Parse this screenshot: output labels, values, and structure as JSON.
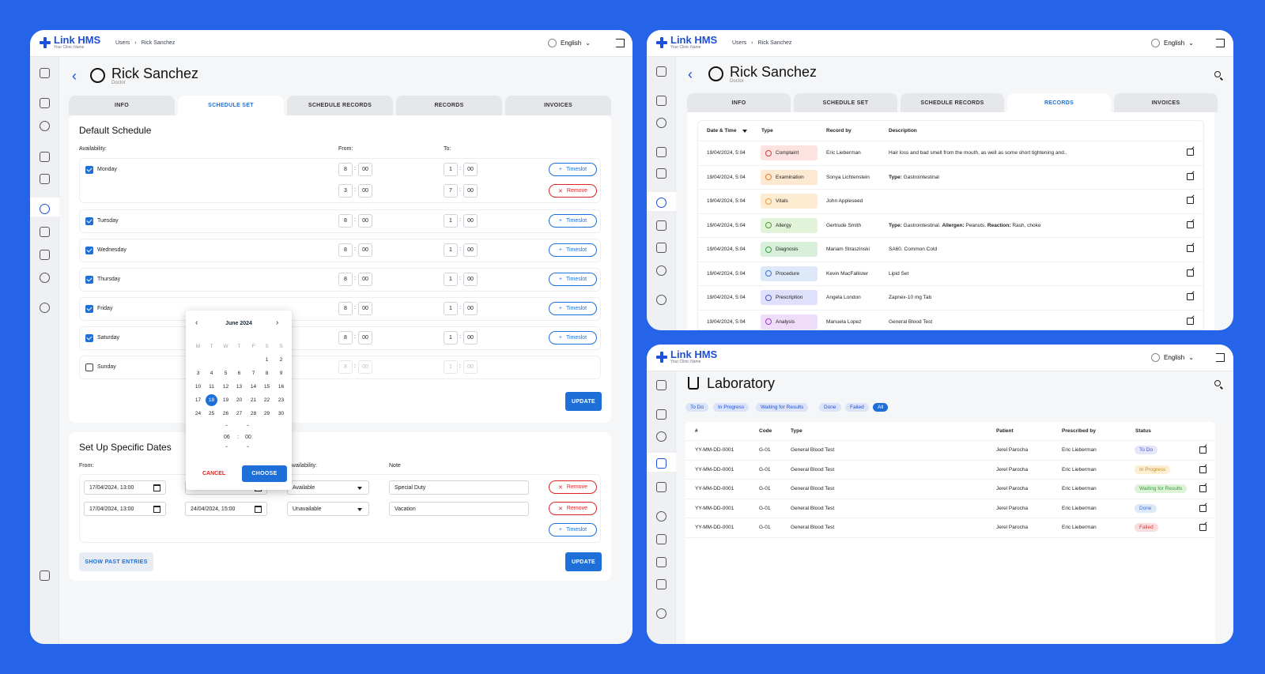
{
  "brand": {
    "name": "Link HMS",
    "sub": "Your Clinic Name"
  },
  "lang": "English",
  "w1": {
    "crumbs": [
      "Users",
      "›",
      "Rick Sanchez"
    ],
    "user": {
      "name": "Rick Sanchez",
      "role": "Doctor"
    },
    "tabs": [
      "INFO",
      "SCHEDULE SET",
      "SCHEDULE RECORDS",
      "RECORDS",
      "INVOICES"
    ],
    "def_title": "Default Schedule",
    "availability": "Availability:",
    "from": "From:",
    "to": "To:",
    "days": [
      {
        "name": "Monday",
        "from_h": "8",
        "from_m": "00",
        "to_h": "1",
        "to_m": "00",
        "checked": true
      },
      {
        "name": "Tuesday",
        "from_h": "8",
        "from_m": "00",
        "to_h": "1",
        "to_m": "00",
        "checked": true
      },
      {
        "name": "Wednesday",
        "from_h": "8",
        "from_m": "00",
        "to_h": "1",
        "to_m": "00",
        "checked": true
      },
      {
        "name": "Thursday",
        "from_h": "8",
        "from_m": "00",
        "to_h": "1",
        "to_m": "00",
        "checked": true
      },
      {
        "name": "Friday",
        "from_h": "8",
        "from_m": "00",
        "to_h": "1",
        "to_m": "00",
        "checked": true
      },
      {
        "name": "Saturday",
        "from_h": "8",
        "from_m": "00",
        "to_h": "1",
        "to_m": "00",
        "checked": true
      },
      {
        "name": "Sunday",
        "from_h": "8",
        "from_m": "00",
        "to_h": "1",
        "to_m": "00",
        "checked": false
      }
    ],
    "monday_extra": {
      "from_h": "3",
      "from_m": "00",
      "to_h": "7",
      "to_m": "00"
    },
    "timeslot": "Timeslot",
    "remove": "Remove",
    "colon": ":",
    "update": "UPDATE",
    "spec_title": "Set Up Specific Dates",
    "spec_from": "From:",
    "spec_avail": "Availability:",
    "spec_note": "Note",
    "spec_rows": [
      {
        "from": "17/04/2024, 13:00",
        "to": "",
        "avail": "Available",
        "note": "Special Duty"
      },
      {
        "from": "17/04/2024, 13:00",
        "to": "24/04/2024, 15:00",
        "avail": "Unavailable",
        "note": "Vacation"
      }
    ],
    "past": "SHOW PAST ENTRIES",
    "cal": {
      "month": "June 2024",
      "dows": [
        "M",
        "T",
        "W",
        "T",
        "F",
        "S",
        "S"
      ],
      "weeks": [
        [
          "",
          "",
          "",
          "",
          "",
          "1",
          "2"
        ],
        [
          "3",
          "4",
          "5",
          "6",
          "7",
          "8",
          "9"
        ],
        [
          "10",
          "11",
          "12",
          "13",
          "14",
          "15",
          "16"
        ],
        [
          "17",
          "18",
          "19",
          "20",
          "21",
          "22",
          "23"
        ],
        [
          "24",
          "25",
          "26",
          "27",
          "28",
          "29",
          "30"
        ]
      ],
      "selected": "18",
      "hour": "06",
      "min": "00",
      "cancel": "CANCEL",
      "choose": "CHOOSE"
    }
  },
  "w2": {
    "crumbs": [
      "Users",
      "›",
      "Rick Sanchez"
    ],
    "user": {
      "name": "Rick Sanchez",
      "role": "Doctor"
    },
    "tabs": [
      "INFO",
      "SCHEDULE SET",
      "SCHEDULE RECORDS",
      "RECORDS",
      "INVOICES"
    ],
    "cols": [
      "Date & Time",
      "Type",
      "Record by",
      "Description"
    ],
    "rows": [
      {
        "date": "19/04/2024, 5:04",
        "type": "Complaint",
        "by": "Eric Lieberman",
        "desc": "Hair loss and bad smell from the mouth, as well as some short tightening and..",
        "bg": "#fde2e2",
        "fg": "#d63a3a"
      },
      {
        "date": "19/04/2024, 5:04",
        "type": "Examination",
        "by": "Sonya Lichtenstein",
        "desc_b": "Type:",
        "desc": " Gastrointestinal",
        "bg": "#fde8d2",
        "fg": "#e07b2a"
      },
      {
        "date": "19/04/2024, 5:04",
        "type": "Vitals",
        "by": "John Appleseed",
        "desc": "",
        "bg": "#fdecd2",
        "fg": "#e89a3a"
      },
      {
        "date": "19/04/2024, 5:04",
        "type": "Allergy",
        "by": "Gertrude Smith",
        "desc_b": "Type:",
        "desc": " Gastrointestinal. ",
        "desc_b2": "Allergen:",
        "desc2": " Peanuts. ",
        "desc_b3": "Reaction:",
        "desc3": " Rash, choke",
        "bg": "#e1f3d8",
        "fg": "#4d9a2a"
      },
      {
        "date": "19/04/2024, 5:04",
        "type": "Diagnosis",
        "by": "Mariam Straszinski",
        "desc": "SA60. Common Cold",
        "bg": "#d8f0d9",
        "fg": "#3a9a45"
      },
      {
        "date": "19/04/2024, 5:04",
        "type": "Procedure",
        "by": "Kevin MacFallister",
        "desc": "Lipid Set",
        "bg": "#dde8f8",
        "fg": "#3b6fd0"
      },
      {
        "date": "19/04/2024, 5:04",
        "type": "Prescription",
        "by": "Angela London",
        "desc": "Zapnex-10 mg Tab",
        "bg": "#dfe0fb",
        "fg": "#4a4fd6"
      },
      {
        "date": "19/04/2024, 5:04",
        "type": "Analysis",
        "by": "Manuela Lopez",
        "desc": "General Blood Test",
        "bg": "#efdcf8",
        "fg": "#9a3ad0"
      }
    ]
  },
  "w3": {
    "title": "Laboratory",
    "filters": [
      "To Do",
      "In Progress",
      "Waiting for Results",
      "Done",
      "Failed",
      "All"
    ],
    "cols": [
      "#",
      "Code",
      "Type",
      "Patient",
      "Prescribed by",
      "Status"
    ],
    "rows": [
      {
        "id": "YY-MM-DD-0001",
        "code": "G-01",
        "type": "General Blood Test",
        "patient": "Jerel Parocha",
        "by": "Eric Lieberman",
        "status": "To Do",
        "bg": "#e3e6fb",
        "fg": "#4a4fd6"
      },
      {
        "id": "YY-MM-DD-0001",
        "code": "G-01",
        "type": "General Blood Test",
        "patient": "Jerel Parocha",
        "by": "Eric Lieberman",
        "status": "In Progress",
        "bg": "#fdf0d2",
        "fg": "#c98a1a"
      },
      {
        "id": "YY-MM-DD-0001",
        "code": "G-01",
        "type": "General Blood Test",
        "patient": "Jerel Parocha",
        "by": "Eric Lieberman",
        "status": "Waiting for Results",
        "bg": "#dcf3d8",
        "fg": "#3a9a3a"
      },
      {
        "id": "YY-MM-DD-0001",
        "code": "G-01",
        "type": "General Blood Test",
        "patient": "Jerel Parocha",
        "by": "Eric Lieberman",
        "status": "Done",
        "bg": "#dde8f8",
        "fg": "#3b6fd0"
      },
      {
        "id": "YY-MM-DD-0001",
        "code": "G-01",
        "type": "General Blood Test",
        "patient": "Jerel Parocha",
        "by": "Eric Lieberman",
        "status": "Failed",
        "bg": "#fbdcdc",
        "fg": "#d63a3a"
      }
    ]
  }
}
